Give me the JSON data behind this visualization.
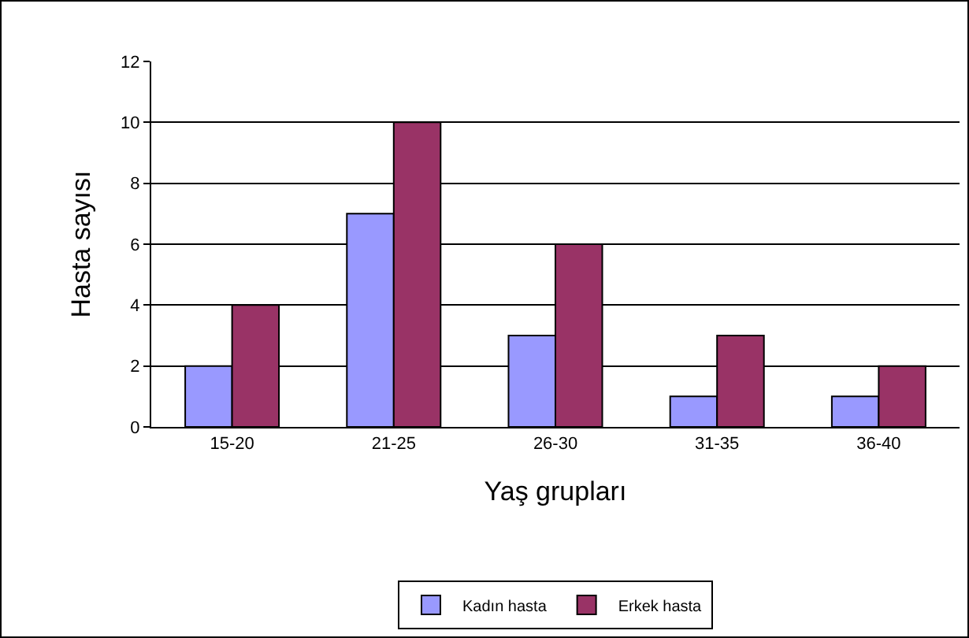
{
  "chart_data": {
    "type": "bar",
    "xlabel": "Yaş grupları",
    "ylabel": "Hasta sayısı",
    "categories": [
      "15-20",
      "21-25",
      "26-30",
      "31-35",
      "36-40"
    ],
    "series": [
      {
        "name": "Kadın hasta",
        "color": "#9999ff",
        "values": [
          2,
          7,
          3,
          1,
          1
        ]
      },
      {
        "name": "Erkek hasta",
        "color": "#993366",
        "values": [
          4,
          10,
          6,
          3,
          2
        ]
      }
    ],
    "ylim": [
      0,
      12
    ],
    "yticks": [
      0,
      2,
      4,
      6,
      8,
      10,
      12
    ],
    "grid": "y",
    "legend": "bottom"
  }
}
